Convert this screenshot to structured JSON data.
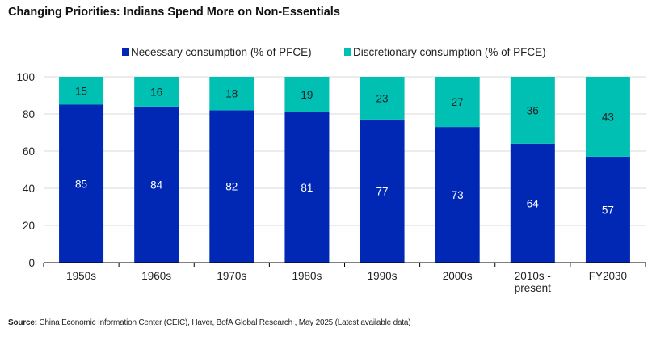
{
  "chart_data": {
    "type": "bar",
    "stacked": true,
    "title": "Changing Priorities: Indians Spend More on Non-Essentials",
    "xlabel": "",
    "ylabel": "",
    "ylim": [
      0,
      100
    ],
    "yticks": [
      0,
      20,
      40,
      60,
      80,
      100
    ],
    "grid": true,
    "legend_position": "top",
    "categories": [
      "1950s",
      "1960s",
      "1970s",
      "1980s",
      "1990s",
      "2000s",
      "2010s - present",
      "FY2030"
    ],
    "category_lines": [
      [
        "1950s"
      ],
      [
        "1960s"
      ],
      [
        "1970s"
      ],
      [
        "1980s"
      ],
      [
        "1990s"
      ],
      [
        "2000s"
      ],
      [
        "2010s -",
        "present"
      ],
      [
        "FY2030"
      ]
    ],
    "series": [
      {
        "name": "Necessary consumption (% of PFCE)",
        "color": "#0028B4",
        "label_color": "#ffffff",
        "values": [
          85,
          84,
          82,
          81,
          77,
          73,
          64,
          57
        ]
      },
      {
        "name": "Discretionary consumption (% of PFCE)",
        "color": "#00BFB3",
        "label_color": "#222222",
        "values": [
          15,
          16,
          18,
          19,
          23,
          27,
          36,
          43
        ]
      }
    ]
  },
  "source": {
    "label": "Source:",
    "text": " China Economic Information Center (CEIC), Haver, BofA Global Research , May 2025 (Latest available data)"
  }
}
